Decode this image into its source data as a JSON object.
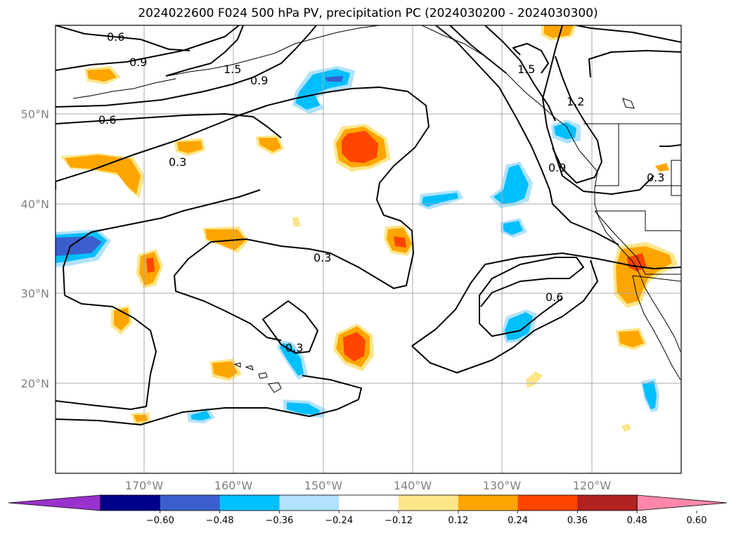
{
  "title": "2024022600 F024 500 hPa PV, precipitation PC (2024030200 - 2024030300)",
  "latitude_labels": [
    "50°N",
    "40°N",
    "30°N",
    "20°N"
  ],
  "longitude_labels": [
    "170°W",
    "160°W",
    "150°W",
    "140°W",
    "130°W",
    "120°W"
  ],
  "pv_contour_labels": [
    "0.6",
    "0.9",
    "1.5",
    "0.9",
    "0.6",
    "0.3",
    "0.3",
    "0.3",
    "0.6",
    "1.5",
    "1.2",
    "0.9",
    "0.3"
  ],
  "colorbar": {
    "ticks": [
      "−0.60",
      "−0.48",
      "−0.36",
      "−0.24",
      "−0.12",
      "0.12",
      "0.24",
      "0.36",
      "0.48",
      "0.60"
    ],
    "colors": [
      "#9932cc",
      "#00008b",
      "#3a5fcd",
      "#00bfff",
      "#b0e2ff",
      "#ffffff",
      "#fde68a",
      "#ffa500",
      "#ff4500",
      "#b22222",
      "#ff88aa"
    ]
  },
  "colors": {
    "neg_weak": "#b0e2ff",
    "neg_mid": "#00bfff",
    "neg_strong": "#3a5fcd",
    "neg_max": "#00008b",
    "pos_weak": "#fde68a",
    "pos_mid": "#ffa500",
    "pos_strong": "#ff4500"
  }
}
